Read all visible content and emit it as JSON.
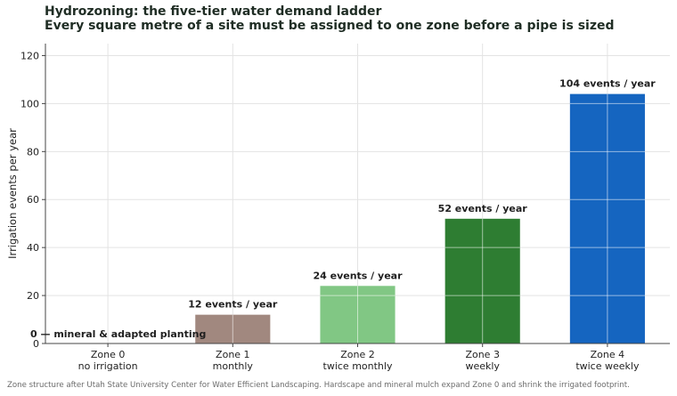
{
  "chart_data": {
    "type": "bar",
    "title": "Hydrozoning: the five-tier water demand ladder",
    "subtitle": "Every square metre of a site must be assigned to one zone before a pipe is sized",
    "xlabel": "",
    "ylabel": "Irrigation events per year",
    "ylim": [
      0,
      125
    ],
    "yticks": [
      "0",
      "20",
      "40",
      "60",
      "80",
      "100",
      "120"
    ],
    "grid": true,
    "categories": [
      {
        "name": "Zone 0",
        "sub": "no irrigation"
      },
      {
        "name": "Zone 1",
        "sub": "monthly"
      },
      {
        "name": "Zone 2",
        "sub": "twice monthly"
      },
      {
        "name": "Zone 3",
        "sub": "weekly"
      },
      {
        "name": "Zone 4",
        "sub": "twice weekly"
      }
    ],
    "values": [
      0,
      12,
      24,
      52,
      104
    ],
    "colors": [
      "#9e9e9e",
      "#a1887f",
      "#81c784",
      "#2e7d32",
      "#1565c0"
    ],
    "data_labels": [
      "0 — mineral & adapted planting",
      "12 events / year",
      "24 events / year",
      "52 events / year",
      "104 events / year"
    ]
  },
  "footnote": "Zone structure after Utah State University Center for Water Efficient Landscaping. Hardscape and mineral mulch expand Zone 0 and shrink the irrigated footprint."
}
